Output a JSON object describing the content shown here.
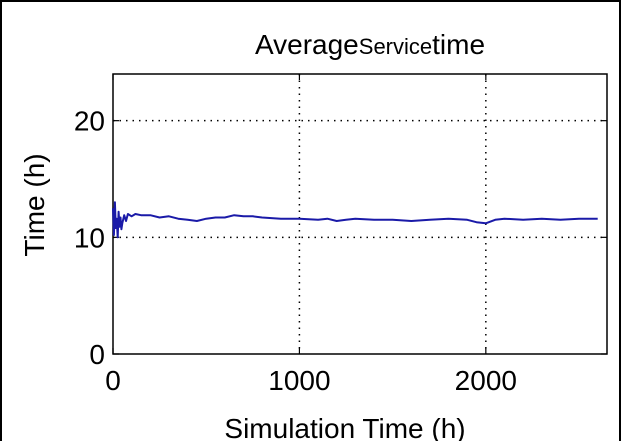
{
  "chart_data": {
    "type": "line",
    "title_main": "Average",
    "title_small": "Service",
    "title_end": "time",
    "xlabel": "Simulation Time (h)",
    "ylabel": "Time (h)",
    "xlim": [
      0,
      2650
    ],
    "ylim": [
      0,
      24
    ],
    "xticks": [
      0,
      1000,
      2000
    ],
    "yticks": [
      0,
      10,
      20
    ],
    "xtick_labels": [
      "0",
      "1000",
      "2000"
    ],
    "ytick_labels": [
      "0",
      "10",
      "20"
    ],
    "grid": true,
    "line_color": "#1a1aa8",
    "series": [
      {
        "x": [
          0,
          5,
          10,
          15,
          20,
          25,
          30,
          35,
          40,
          45,
          50,
          60,
          70,
          80,
          100,
          120,
          150,
          200,
          250,
          300,
          350,
          400,
          450,
          500,
          550,
          600,
          650,
          700,
          750,
          800,
          900,
          1000,
          1100,
          1150,
          1200,
          1250,
          1300,
          1400,
          1500,
          1600,
          1700,
          1800,
          1900,
          1950,
          2000,
          2050,
          2100,
          2200,
          2300,
          2400,
          2500,
          2600
        ],
        "y": [
          12.5,
          10.2,
          13.0,
          10.8,
          11.6,
          10.0,
          12.2,
          10.9,
          11.7,
          10.7,
          11.2,
          11.9,
          11.4,
          12.0,
          11.8,
          12.0,
          11.9,
          11.9,
          11.7,
          11.8,
          11.6,
          11.5,
          11.4,
          11.6,
          11.7,
          11.7,
          11.9,
          11.8,
          11.8,
          11.7,
          11.6,
          11.6,
          11.5,
          11.6,
          11.4,
          11.5,
          11.6,
          11.5,
          11.5,
          11.4,
          11.5,
          11.6,
          11.5,
          11.3,
          11.2,
          11.5,
          11.6,
          11.5,
          11.6,
          11.5,
          11.6,
          11.6
        ]
      }
    ]
  }
}
